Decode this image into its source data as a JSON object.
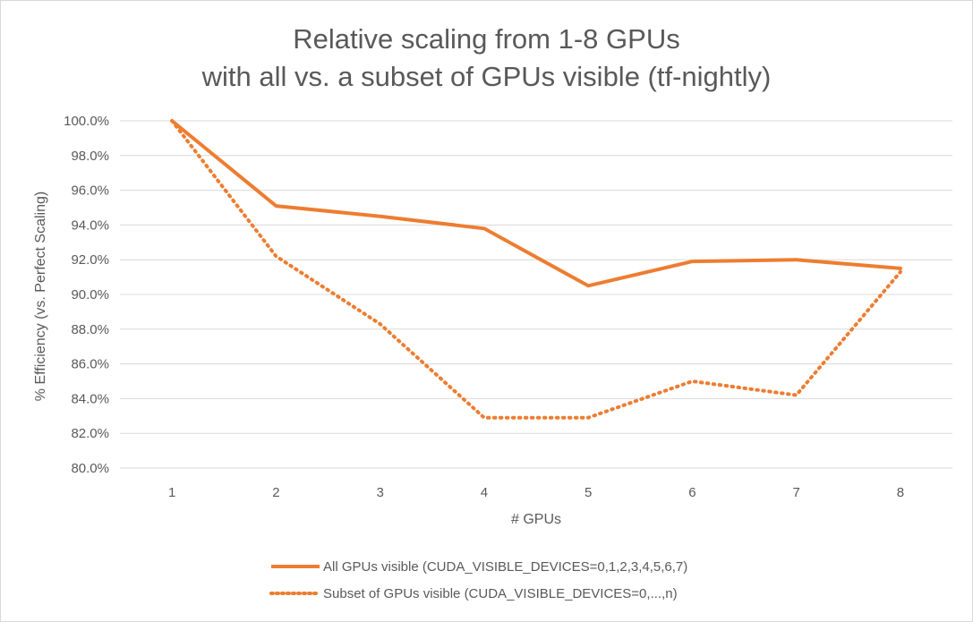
{
  "chart_data": {
    "type": "line",
    "title_lines": [
      "Relative scaling from 1-8 GPUs",
      "with all vs. a subset of GPUs visible (tf-nightly)"
    ],
    "xlabel": "# GPUs",
    "ylabel": "% Efficiency (vs. Perfect Scaling)",
    "categories": [
      "1",
      "2",
      "3",
      "4",
      "5",
      "6",
      "7",
      "8"
    ],
    "ylim": [
      80.0,
      100.0
    ],
    "ytick_step": 2.0,
    "ytick_labels": [
      "80.0%",
      "82.0%",
      "84.0%",
      "86.0%",
      "88.0%",
      "90.0%",
      "92.0%",
      "94.0%",
      "96.0%",
      "98.0%",
      "100.0%"
    ],
    "grid": "horizontal",
    "legend_position": "bottom",
    "series": [
      {
        "name": "All GPUs visible (CUDA_VISIBLE_DEVICES=0,1,2,3,4,5,6,7)",
        "values": [
          100.0,
          95.1,
          94.5,
          93.8,
          90.5,
          91.9,
          92.0,
          91.5
        ],
        "color": "#ED7D31",
        "style": "solid"
      },
      {
        "name": "Subset of GPUs visible (CUDA_VISIBLE_DEVICES=0,...,n)",
        "values": [
          100.0,
          92.2,
          88.3,
          82.9,
          82.9,
          85.0,
          84.2,
          91.3
        ],
        "color": "#ED7D31",
        "style": "dotted"
      }
    ]
  }
}
